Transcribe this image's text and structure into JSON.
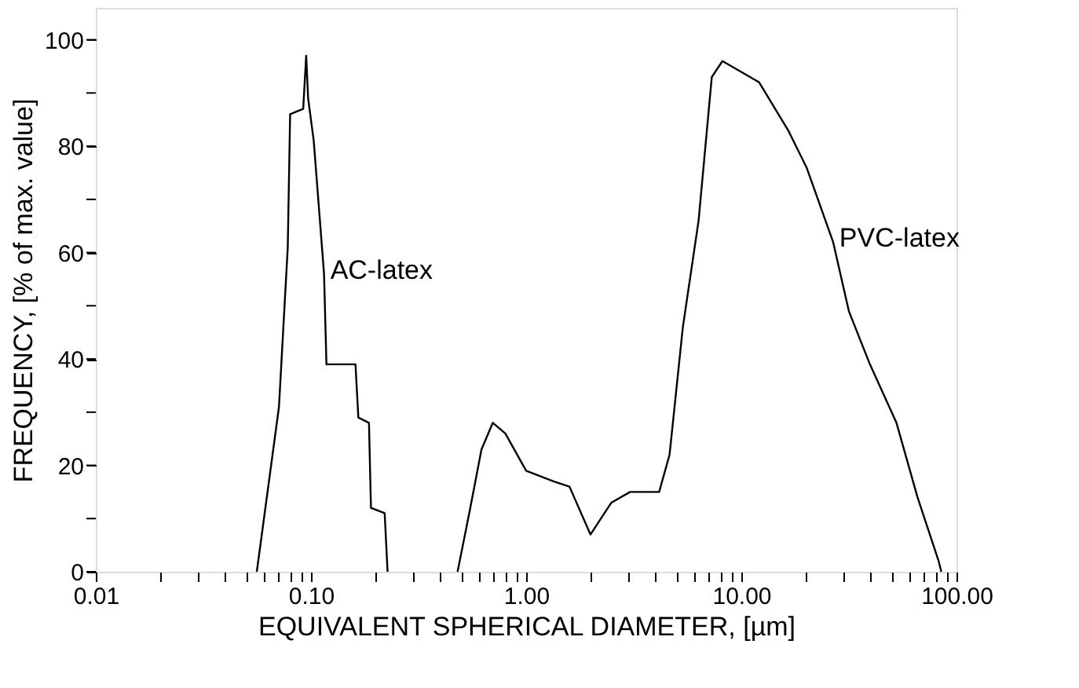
{
  "chart_data": {
    "type": "line",
    "xlabel": "EQUIVALENT SPHERICAL DIAMETER, [µm]",
    "ylabel": "FREQUENCY, [% of max. value]",
    "log": "x",
    "grid": false,
    "legend": false,
    "marker": "none",
    "line_style": "solid",
    "xlim": [
      0.01,
      100
    ],
    "ylim": [
      0,
      106
    ],
    "xticks": [
      {
        "value": 0.01,
        "label": "0.01"
      },
      {
        "value": 0.02,
        "label": null
      },
      {
        "value": 0.03,
        "label": null
      },
      {
        "value": 0.04,
        "label": null
      },
      {
        "value": 0.05,
        "label": null
      },
      {
        "value": 0.06,
        "label": null
      },
      {
        "value": 0.07,
        "label": null
      },
      {
        "value": 0.08,
        "label": null
      },
      {
        "value": 0.09,
        "label": null
      },
      {
        "value": 0.1,
        "label": "0.10"
      },
      {
        "value": 0.2,
        "label": null
      },
      {
        "value": 0.3,
        "label": null
      },
      {
        "value": 0.4,
        "label": null
      },
      {
        "value": 0.5,
        "label": null
      },
      {
        "value": 0.6,
        "label": null
      },
      {
        "value": 0.7,
        "label": null
      },
      {
        "value": 0.8,
        "label": null
      },
      {
        "value": 0.9,
        "label": null
      },
      {
        "value": 1,
        "label": "1.00"
      },
      {
        "value": 2,
        "label": null
      },
      {
        "value": 3,
        "label": null
      },
      {
        "value": 4,
        "label": null
      },
      {
        "value": 5,
        "label": null
      },
      {
        "value": 6,
        "label": null
      },
      {
        "value": 7,
        "label": null
      },
      {
        "value": 8,
        "label": null
      },
      {
        "value": 9,
        "label": null
      },
      {
        "value": 10,
        "label": "10.00"
      },
      {
        "value": 20,
        "label": null
      },
      {
        "value": 30,
        "label": null
      },
      {
        "value": 40,
        "label": null
      },
      {
        "value": 50,
        "label": null
      },
      {
        "value": 60,
        "label": null
      },
      {
        "value": 70,
        "label": null
      },
      {
        "value": 80,
        "label": null
      },
      {
        "value": 90,
        "label": null
      },
      {
        "value": 100,
        "label": "100.00"
      }
    ],
    "yticks": [
      0,
      {
        "value": 10,
        "label": null
      },
      20,
      {
        "value": 30,
        "label": null
      },
      40,
      {
        "value": 50,
        "label": null
      },
      60,
      {
        "value": 70,
        "label": null
      },
      80,
      {
        "value": 90,
        "label": null
      },
      100
    ],
    "series": [
      {
        "name": "AC-latex",
        "color": "#000000",
        "x": [
          0.056,
          0.071,
          0.078,
          0.08,
          0.092,
          0.095,
          0.097,
          0.103,
          0.115,
          0.118,
          0.161,
          0.166,
          0.186,
          0.19,
          0.22,
          0.227
        ],
        "values": [
          0,
          31,
          61,
          86,
          87,
          97,
          89,
          81,
          56,
          39,
          39,
          29,
          28,
          12,
          11,
          0
        ]
      },
      {
        "name": "PVC-latex",
        "color": "#000000",
        "x": [
          0.48,
          0.55,
          0.62,
          0.7,
          0.8,
          1.0,
          1.34,
          1.59,
          1.99,
          2.49,
          3.04,
          4.15,
          4.64,
          5.35,
          6.33,
          7.29,
          8.17,
          12.1,
          16.5,
          20.1,
          26.7,
          31.6,
          39.6,
          52.6,
          65.9,
          82.6,
          85
        ],
        "values": [
          0,
          12,
          23,
          28,
          26,
          19,
          17,
          16,
          7,
          13,
          15,
          15,
          22,
          46,
          66,
          93,
          96,
          92,
          83,
          76,
          62,
          49,
          39,
          28,
          14,
          2,
          0
        ]
      }
    ]
  }
}
